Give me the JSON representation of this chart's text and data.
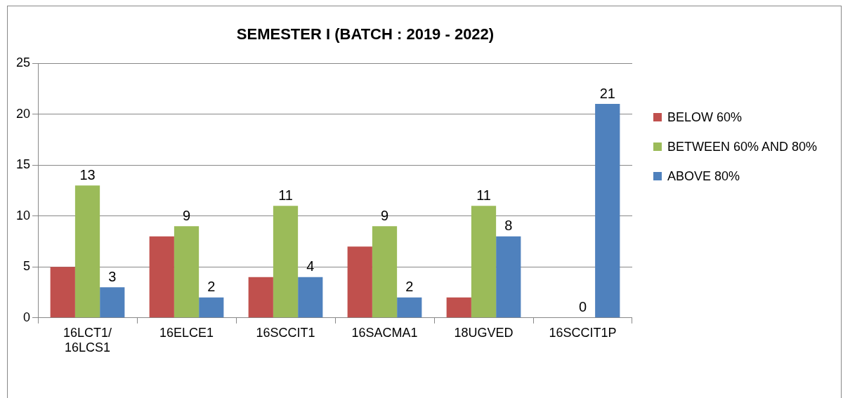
{
  "chart_data": {
    "type": "bar",
    "title": "SEMESTER I (BATCH : 2019 - 2022)",
    "categories": [
      "16LCT1/ 16LCS1",
      "16ELCE1",
      "16SCCIT1",
      "16SACMA1",
      "18UGVED",
      "16SCCIT1P"
    ],
    "series": [
      {
        "name": "BELOW 60%",
        "color": "#c0504d",
        "values": [
          5,
          8,
          4,
          7,
          2,
          0
        ]
      },
      {
        "name": "BETWEEN 60% AND 80%",
        "color": "#9bbb59",
        "values": [
          13,
          9,
          11,
          9,
          11,
          0
        ],
        "value_labels": [
          "13",
          "9",
          "11",
          "9",
          "11",
          "0"
        ]
      },
      {
        "name": "ABOVE 80%",
        "color": "#4f81bd",
        "values": [
          3,
          2,
          4,
          2,
          8,
          21
        ],
        "value_labels": [
          "3",
          "2",
          "4",
          "2",
          "8",
          "21"
        ]
      }
    ],
    "ylim": [
      0,
      25
    ],
    "yticks": [
      0,
      5,
      10,
      15,
      20,
      25
    ],
    "grid": "y",
    "legend": "right"
  }
}
